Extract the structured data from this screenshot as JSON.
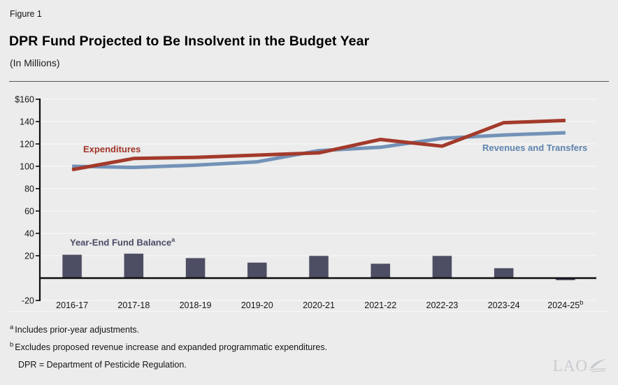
{
  "figure_label": "Figure 1",
  "title": "DPR Fund Projected to Be Insolvent in the Budget Year",
  "subtitle": "(In Millions)",
  "chart_data": {
    "type": "combo",
    "categories": [
      "2016-17",
      "2017-18",
      "2018-19",
      "2019-20",
      "2020-21",
      "2021-22",
      "2022-23",
      "2023-24",
      "2024-25"
    ],
    "category_superscripts": {
      "8": "b"
    },
    "y_axis": {
      "min": -20,
      "max": 160,
      "tick_interval": 20,
      "ticks": [
        {
          "value": 160,
          "label": "$160"
        },
        {
          "value": 140,
          "label": "140"
        },
        {
          "value": 120,
          "label": "120"
        },
        {
          "value": 100,
          "label": "100"
        },
        {
          "value": 80,
          "label": "80"
        },
        {
          "value": 60,
          "label": "60"
        },
        {
          "value": 40,
          "label": "40"
        },
        {
          "value": 20,
          "label": "20"
        },
        {
          "value": -20,
          "label": "-20"
        }
      ]
    },
    "grid": true,
    "series": [
      {
        "name": "Year-End Fund Balance",
        "label_superscript": "a",
        "type": "bar",
        "color": "#4d4d63",
        "label_color": "#4a4b66",
        "values": [
          21,
          22,
          18,
          14,
          20,
          13,
          20,
          9,
          -2
        ]
      },
      {
        "name": "Revenues and Transfers",
        "type": "line",
        "color": "#7392b8",
        "label_color": "#6084b0",
        "values": [
          100,
          99,
          101,
          104,
          114,
          117,
          125,
          128,
          130
        ]
      },
      {
        "name": "Expenditures",
        "type": "line",
        "color": "#a33a2b",
        "label_color": "#a1352a",
        "values": [
          97,
          107,
          108,
          110,
          112,
          124,
          118,
          139,
          141
        ]
      }
    ]
  },
  "footnotes": [
    {
      "marker": "a",
      "text": "Includes prior-year adjustments."
    },
    {
      "marker": "b",
      "text": "Excludes proposed revenue increase and expanded programmatic expenditures."
    }
  ],
  "definition": "DPR =  Department of Pesticide Regulation.",
  "logo_text": "LAO"
}
